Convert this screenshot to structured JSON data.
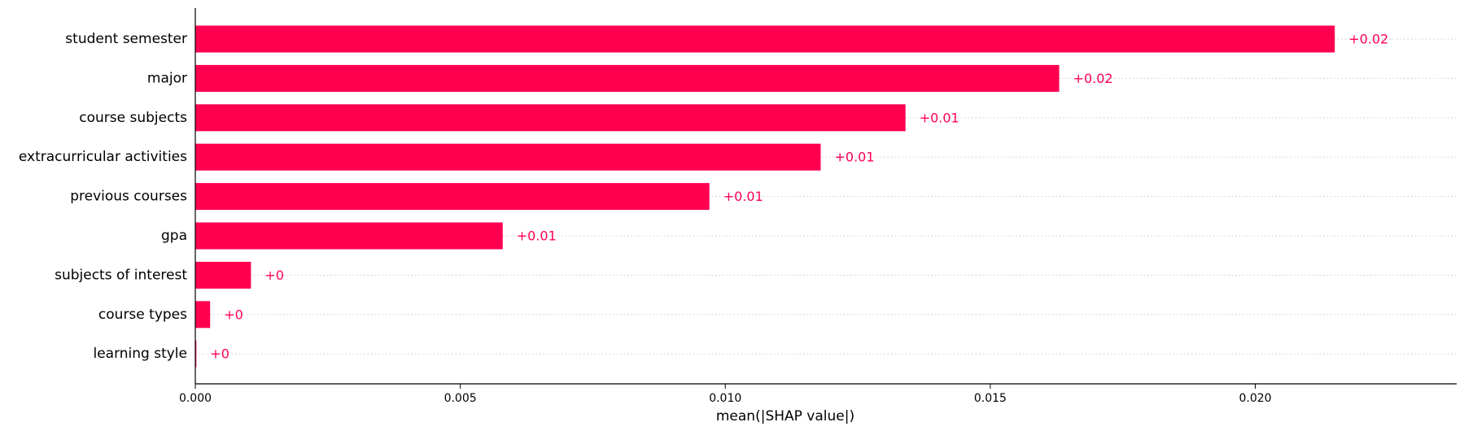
{
  "chart_data": {
    "type": "bar",
    "orientation": "horizontal",
    "categories": [
      "student semester",
      "major",
      "course subjects",
      "extracurricular activities",
      "previous courses",
      "gpa",
      "subjects of interest",
      "course types",
      "learning style"
    ],
    "values": [
      0.0215,
      0.0163,
      0.0134,
      0.0118,
      0.0097,
      0.0058,
      0.00105,
      0.00028,
      2e-05
    ],
    "value_labels": [
      "+0.02",
      "+0.02",
      "+0.01",
      "+0.01",
      "+0.01",
      "+0.01",
      "+0",
      "+0",
      "+0"
    ],
    "xlabel": "mean(|SHAP value|)",
    "ylabel": "",
    "xlim": [
      0,
      0.0238
    ],
    "xticks": [
      0.0,
      0.005,
      0.01,
      0.015,
      0.02
    ],
    "xtick_labels": [
      "0.000",
      "0.005",
      "0.010",
      "0.015",
      "0.020"
    ],
    "bar_color": "#ff0051",
    "gridlines": "dotted horizontal per category",
    "legend": "none"
  }
}
